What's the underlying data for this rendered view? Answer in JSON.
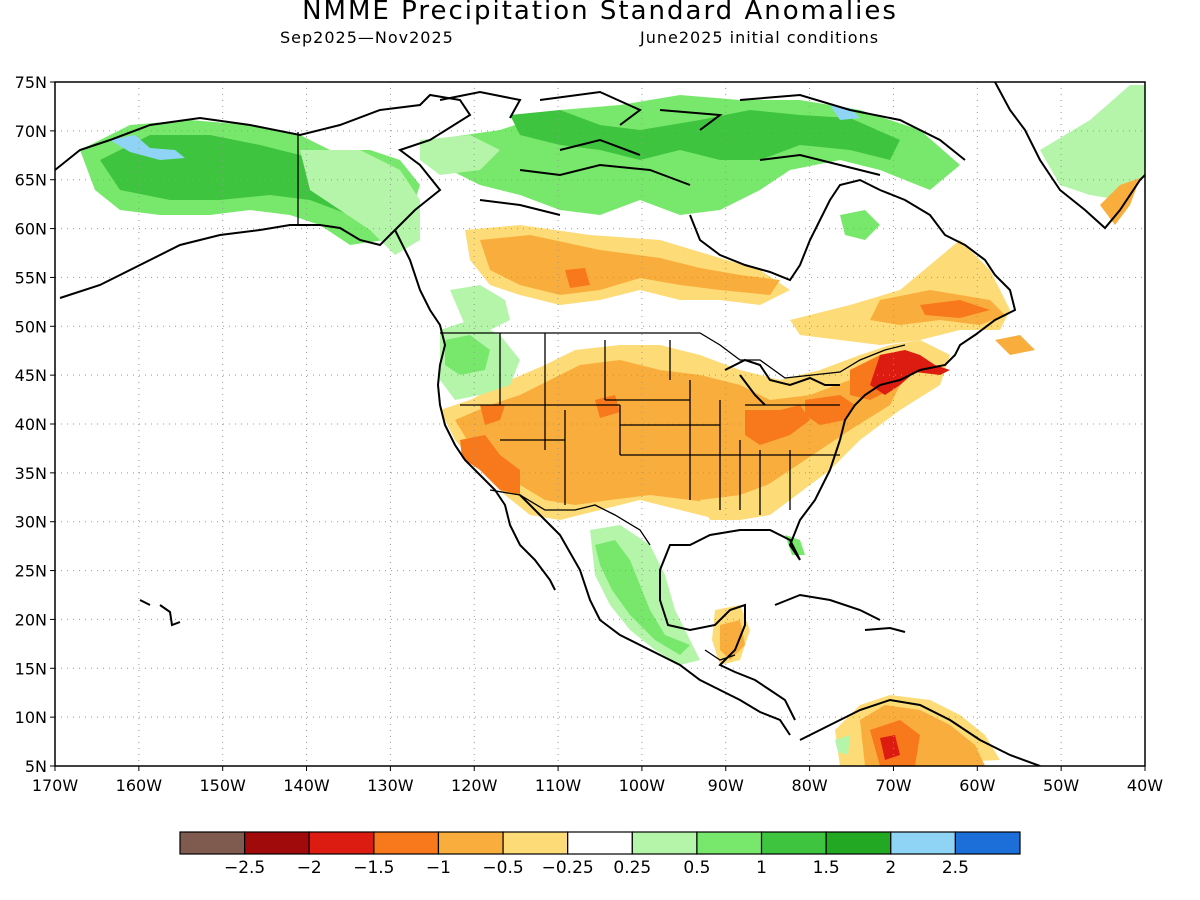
{
  "header": {
    "title": "NMME Precipitation Standard Anomalies",
    "period": "Sep2025—Nov2025",
    "init": "June2025 initial conditions"
  },
  "map": {
    "lat_ticks": [
      "75N",
      "70N",
      "65N",
      "60N",
      "55N",
      "50N",
      "45N",
      "40N",
      "35N",
      "30N",
      "25N",
      "20N",
      "15N",
      "10N",
      "5N"
    ],
    "lon_ticks": [
      "170W",
      "160W",
      "150W",
      "140W",
      "130W",
      "120W",
      "110W",
      "100W",
      "90W",
      "80W",
      "70W",
      "60W",
      "50W",
      "40W"
    ],
    "lat_range": [
      5,
      75
    ],
    "lon_range": [
      -170,
      -40
    ],
    "grid": true,
    "colors": {
      "dry_strong": "#dc1c10",
      "dry_mod": "#f8781c",
      "dry_weak": "#f9ad3c",
      "dry_slight": "#fddb76",
      "wet_slight": "#b4f5aa",
      "wet_weak": "#78e86c",
      "wet_mod": "#3fc43f",
      "wet_high": "#8fd4f5"
    }
  },
  "colorbar": {
    "colors": [
      "#7f5a4f",
      "#a00a0a",
      "#dc1c10",
      "#f8781c",
      "#f9ad3c",
      "#fddb76",
      "#ffffff",
      "#b4f5aa",
      "#78e86c",
      "#3fc43f",
      "#22a822",
      "#8fd4f5",
      "#1c6fd8"
    ],
    "labels": [
      "−2.5",
      "−2",
      "−1.5",
      "−1",
      "−0.5",
      "−0.25",
      "0.25",
      "0.5",
      "1",
      "1.5",
      "2",
      "2.5"
    ]
  }
}
